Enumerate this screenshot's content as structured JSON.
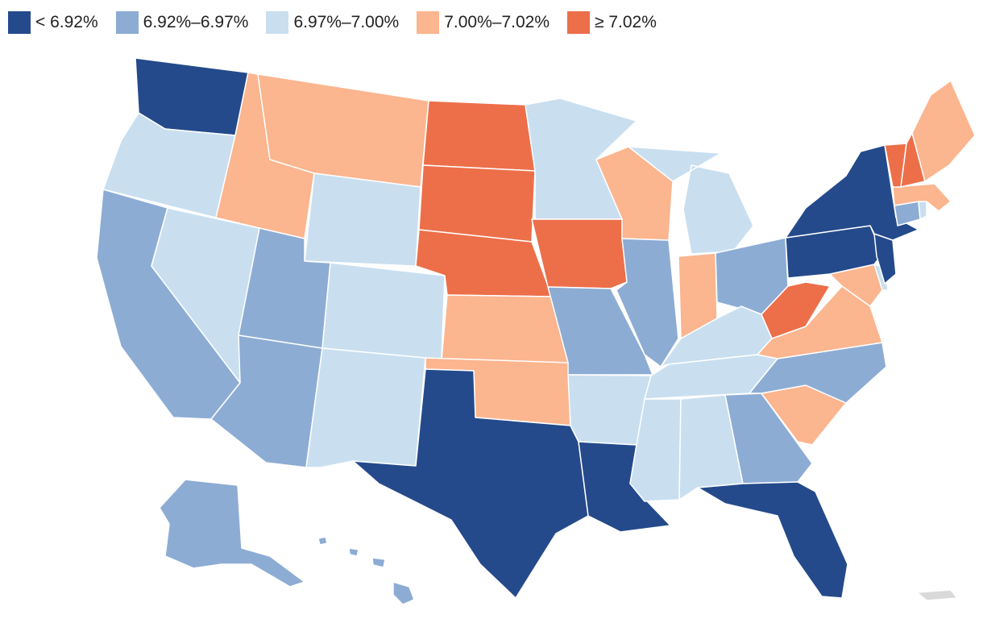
{
  "legend": [
    {
      "label": "< 6.92%",
      "color": "#244a8b"
    },
    {
      "label": "6.92%–6.97%",
      "color": "#8dacd4"
    },
    {
      "label": "6.97%–7.00%",
      "color": "#c9dff0"
    },
    {
      "label": "7.00%–7.02%",
      "color": "#fbb58f"
    },
    {
      "label": "≥ 7.02%",
      "color": "#ec6f4a"
    }
  ],
  "no_data_color": "#d9d9d9",
  "states": [
    {
      "name": "Washington",
      "bin": 0
    },
    {
      "name": "Oregon",
      "bin": 2
    },
    {
      "name": "California",
      "bin": 1
    },
    {
      "name": "Nevada",
      "bin": 2
    },
    {
      "name": "Idaho",
      "bin": 3
    },
    {
      "name": "Montana",
      "bin": 3
    },
    {
      "name": "Wyoming",
      "bin": 2
    },
    {
      "name": "Utah",
      "bin": 1
    },
    {
      "name": "Arizona",
      "bin": 1
    },
    {
      "name": "Colorado",
      "bin": 2
    },
    {
      "name": "New Mexico",
      "bin": 2
    },
    {
      "name": "North Dakota",
      "bin": 4
    },
    {
      "name": "South Dakota",
      "bin": 4
    },
    {
      "name": "Nebraska",
      "bin": 4
    },
    {
      "name": "Kansas",
      "bin": 3
    },
    {
      "name": "Oklahoma",
      "bin": 3
    },
    {
      "name": "Texas",
      "bin": 0
    },
    {
      "name": "Minnesota",
      "bin": 2
    },
    {
      "name": "Iowa",
      "bin": 4
    },
    {
      "name": "Missouri",
      "bin": 1
    },
    {
      "name": "Arkansas",
      "bin": 2
    },
    {
      "name": "Louisiana",
      "bin": 0
    },
    {
      "name": "Wisconsin",
      "bin": 3
    },
    {
      "name": "Illinois",
      "bin": 1
    },
    {
      "name": "Michigan",
      "bin": 2
    },
    {
      "name": "Indiana",
      "bin": 3
    },
    {
      "name": "Ohio",
      "bin": 1
    },
    {
      "name": "Kentucky",
      "bin": 2
    },
    {
      "name": "Tennessee",
      "bin": 2
    },
    {
      "name": "Mississippi",
      "bin": 2
    },
    {
      "name": "Alabama",
      "bin": 2
    },
    {
      "name": "Georgia",
      "bin": 1
    },
    {
      "name": "Florida",
      "bin": 0
    },
    {
      "name": "South Carolina",
      "bin": 3
    },
    {
      "name": "North Carolina",
      "bin": 1
    },
    {
      "name": "Virginia",
      "bin": 3
    },
    {
      "name": "West Virginia",
      "bin": 4
    },
    {
      "name": "Maryland",
      "bin": 3
    },
    {
      "name": "Delaware",
      "bin": 2
    },
    {
      "name": "Pennsylvania",
      "bin": 0
    },
    {
      "name": "New Jersey",
      "bin": 0
    },
    {
      "name": "New York",
      "bin": 0
    },
    {
      "name": "Connecticut",
      "bin": 1
    },
    {
      "name": "Rhode Island",
      "bin": 2
    },
    {
      "name": "Massachusetts",
      "bin": 3
    },
    {
      "name": "Vermont",
      "bin": 4
    },
    {
      "name": "New Hampshire",
      "bin": 4
    },
    {
      "name": "Maine",
      "bin": 3
    },
    {
      "name": "Alaska",
      "bin": 1
    },
    {
      "name": "Hawaii",
      "bin": 1
    },
    {
      "name": "Puerto Rico",
      "bin": null
    }
  ]
}
